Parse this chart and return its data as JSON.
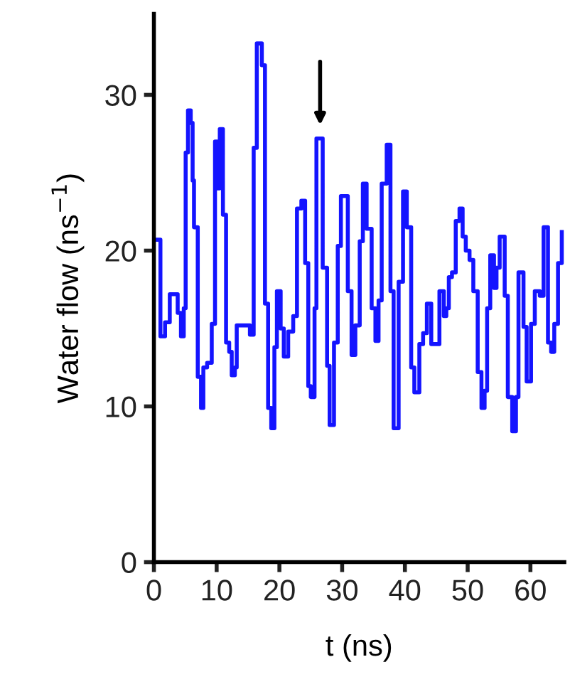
{
  "chart_data": {
    "type": "step",
    "xlabel": "t (ns)",
    "ylabel": "Water flow (ns$^{−1}$)",
    "xlim": [
      0,
      65.4
    ],
    "ylim": [
      0,
      35.2
    ],
    "xticks": [
      0,
      10,
      20,
      30,
      40,
      50,
      60
    ],
    "yticks": [
      0,
      10,
      20,
      30
    ],
    "grid": false,
    "series": [
      {
        "color": "#1414ff",
        "x": [
          0,
          1.04,
          1.78,
          2.53,
          3.79,
          4.31,
          4.76,
          5.06,
          5.43,
          5.87,
          6.17,
          6.39,
          6.99,
          7.51,
          7.88,
          8.48,
          9.22,
          9.74,
          10.1,
          10.5,
          11.0,
          11.5,
          12.0,
          12.4,
          12.9,
          13.2,
          15.3,
          15.9,
          16.4,
          17.2,
          17.7,
          18.2,
          18.7,
          19.2,
          19.6,
          20.2,
          20.7,
          21.4,
          22.2,
          22.8,
          23.5,
          24.1,
          24.6,
          25.0,
          25.6,
          25.9,
          26.9,
          27.6,
          28.0,
          28.7,
          29.3,
          29.8,
          30.9,
          31.5,
          32.1,
          32.8,
          33.3,
          33.9,
          34.7,
          35.3,
          35.8,
          36.3,
          37.1,
          37.7,
          38.2,
          39.0,
          39.7,
          40.3,
          41.0,
          41.5,
          42.3,
          42.9,
          43.5,
          44.2,
          45.5,
          46.2,
          46.6,
          47.0,
          47.5,
          48.1,
          48.7,
          49.2,
          49.7,
          50.3,
          50.9,
          51.6,
          52.2,
          52.7,
          53.1,
          53.6,
          54.2,
          54.6,
          55.1,
          55.9,
          56.4,
          57.1,
          57.7,
          58.1,
          58.9,
          59.4,
          60.1,
          60.7,
          61.5,
          62.1,
          62.8,
          63.3,
          63.8,
          64.4,
          65.0
        ],
        "values": [
          20.7,
          14.5,
          15.4,
          17.2,
          16.0,
          14.5,
          16.3,
          26.3,
          29.0,
          28.2,
          24.5,
          21.5,
          11.9,
          9.9,
          12.5,
          12.8,
          15.3,
          27.0,
          24.0,
          27.8,
          22.3,
          14.1,
          13.5,
          12.0,
          12.5,
          15.2,
          14.6,
          26.6,
          33.3,
          31.9,
          16.6,
          9.9,
          8.6,
          13.8,
          17.4,
          15.0,
          13.2,
          14.8,
          15.8,
          22.7,
          23.2,
          19.2,
          11.3,
          10.6,
          16.3,
          27.2,
          18.9,
          12.6,
          8.8,
          14.1,
          20.3,
          23.5,
          17.4,
          13.3,
          15.2,
          20.6,
          24.3,
          21.4,
          16.3,
          14.2,
          16.8,
          24.3,
          26.8,
          17.4,
          8.6,
          18.0,
          23.8,
          21.5,
          12.5,
          10.9,
          14.0,
          14.7,
          16.6,
          14.0,
          17.4,
          15.8,
          16.3,
          18.3,
          18.6,
          21.9,
          22.7,
          20.9,
          20.0,
          19.4,
          17.4,
          12.2,
          9.9,
          11.0,
          16.3,
          19.7,
          17.6,
          18.9,
          20.9,
          17.1,
          10.6,
          8.4,
          10.6,
          18.6,
          15.1,
          11.6,
          15.3,
          17.4,
          17.1,
          21.5,
          14.1,
          13.5,
          15.3,
          19.2,
          21.2
        ]
      }
    ]
  }
}
